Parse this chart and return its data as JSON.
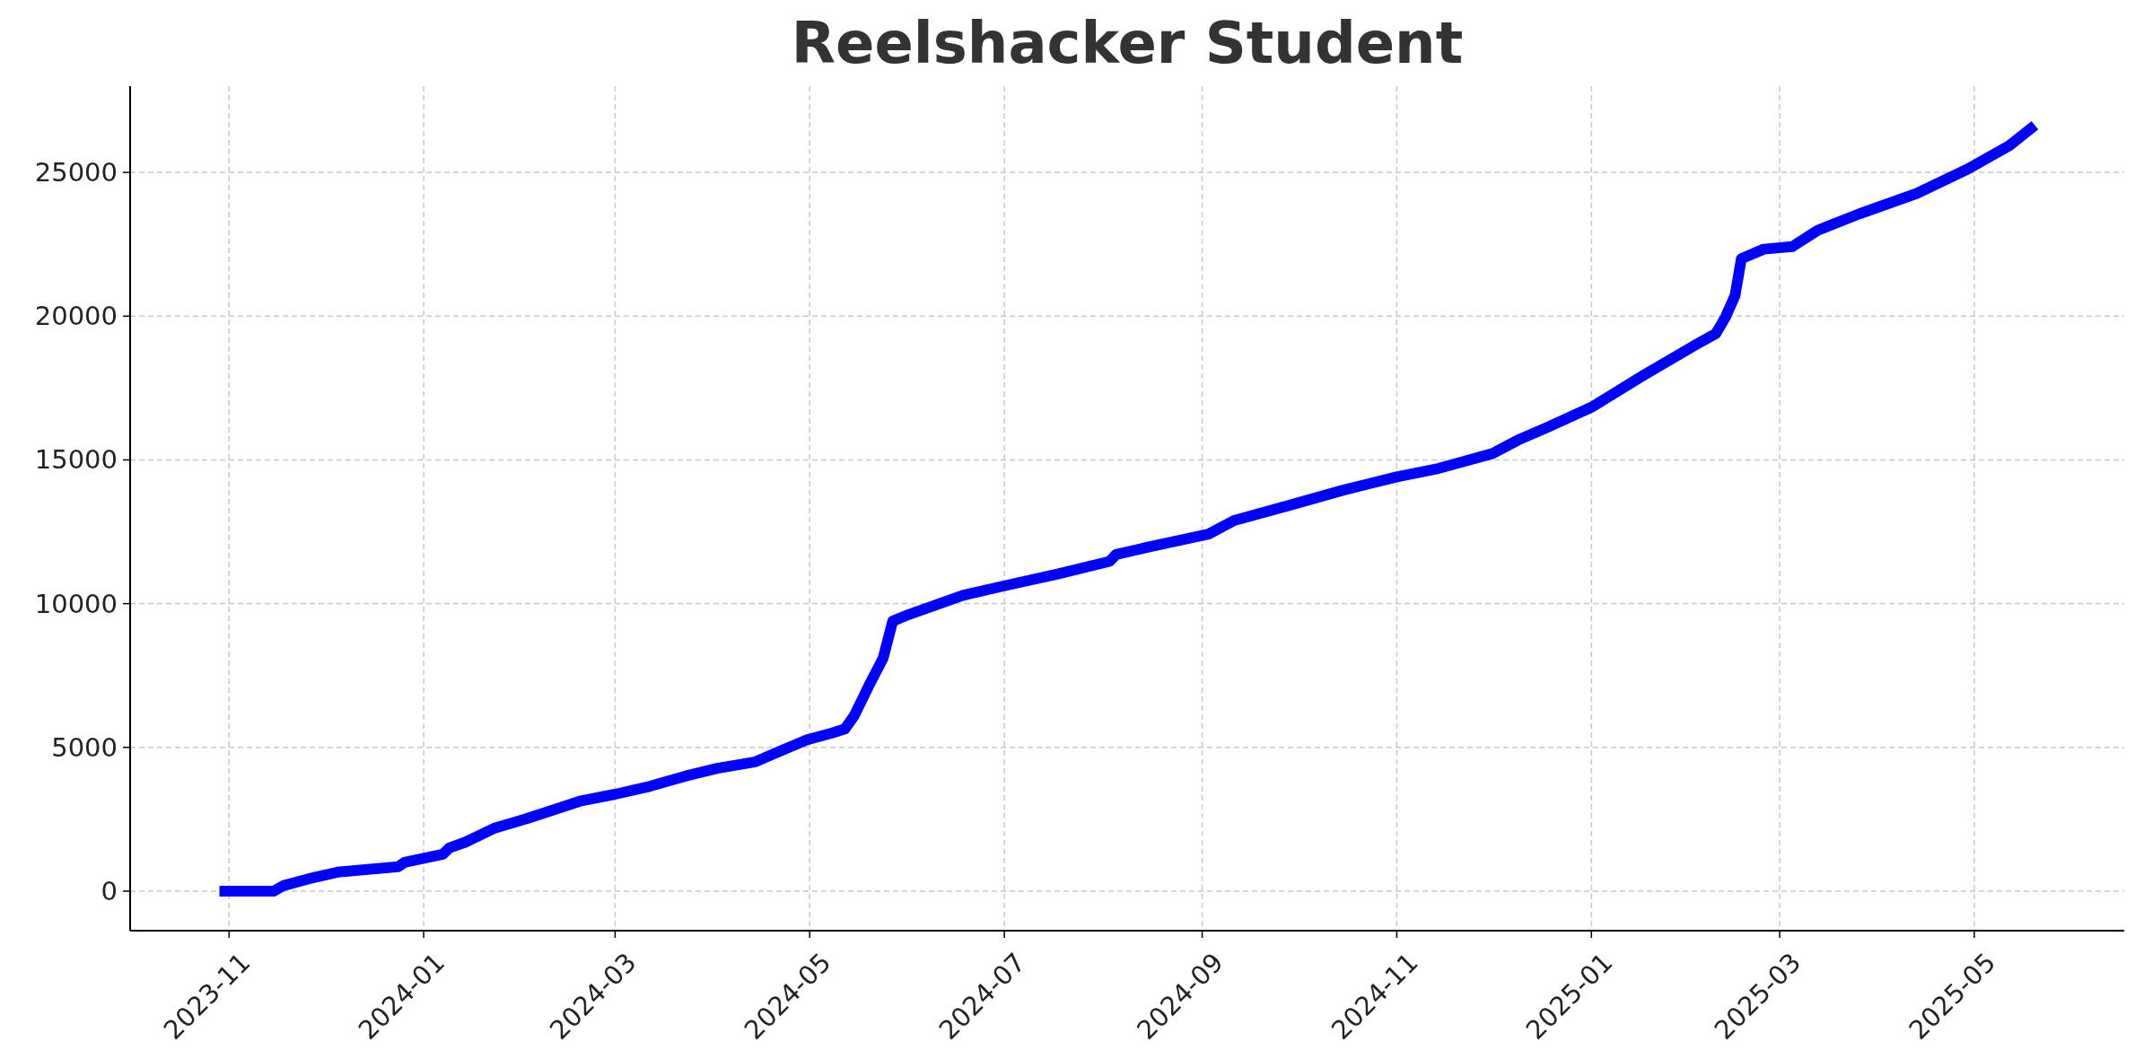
{
  "chart_data": {
    "type": "line",
    "title": "Reelshacker Student",
    "x": [
      "2023-10-29",
      "2023-11-15",
      "2023-11-18",
      "2023-11-26",
      "2023-12-05",
      "2023-12-24",
      "2023-12-26",
      "2024-01-07",
      "2024-01-09",
      "2024-01-14",
      "2024-01-23",
      "2024-02-02",
      "2024-02-19",
      "2024-03-01",
      "2024-03-12",
      "2024-03-24",
      "2024-04-02",
      "2024-04-14",
      "2024-04-23",
      "2024-04-30",
      "2024-05-08",
      "2024-05-12",
      "2024-05-15",
      "2024-05-20",
      "2024-05-24",
      "2024-05-27",
      "2024-06-01",
      "2024-06-18",
      "2024-07-01",
      "2024-07-18",
      "2024-08-03",
      "2024-08-05",
      "2024-08-16",
      "2024-09-03",
      "2024-09-11",
      "2024-09-28",
      "2024-10-15",
      "2024-11-01",
      "2024-11-14",
      "2024-12-01",
      "2024-12-09",
      "2024-12-18",
      "2025-01-01",
      "2025-01-17",
      "2025-02-02",
      "2025-02-09",
      "2025-02-12",
      "2025-02-15",
      "2025-02-17",
      "2025-02-24",
      "2025-03-05",
      "2025-03-13",
      "2025-03-26",
      "2025-04-13",
      "2025-04-29",
      "2025-05-12",
      "2025-05-20"
    ],
    "series": [
      {
        "color": "#0000ff",
        "values": [
          0,
          0,
          190,
          430,
          660,
          850,
          1000,
          1280,
          1500,
          1700,
          2180,
          2510,
          3130,
          3370,
          3650,
          4030,
          4270,
          4500,
          4930,
          5260,
          5500,
          5640,
          6110,
          7250,
          8100,
          9390,
          9620,
          10290,
          10620,
          11040,
          11470,
          11710,
          11990,
          12420,
          12890,
          13410,
          13940,
          14410,
          14700,
          15220,
          15690,
          16120,
          16830,
          17920,
          18960,
          19390,
          19960,
          20710,
          22000,
          22330,
          22420,
          22990,
          23560,
          24270,
          25120,
          25930,
          26640
        ]
      }
    ],
    "xlim": [
      "2023-10-01",
      "2025-06-17"
    ],
    "xticks": [
      {
        "value": "2023-11-01",
        "label": "2023-11"
      },
      {
        "value": "2024-01-01",
        "label": "2024-01"
      },
      {
        "value": "2024-03-01",
        "label": "2024-03"
      },
      {
        "value": "2024-05-01",
        "label": "2024-05"
      },
      {
        "value": "2024-07-01",
        "label": "2024-07"
      },
      {
        "value": "2024-09-01",
        "label": "2024-09"
      },
      {
        "value": "2024-11-01",
        "label": "2024-11"
      },
      {
        "value": "2025-01-01",
        "label": "2025-01"
      },
      {
        "value": "2025-03-01",
        "label": "2025-03"
      },
      {
        "value": "2025-05-01",
        "label": "2025-05"
      }
    ],
    "ylim": [
      -1375,
      28000
    ],
    "yticks": [
      0,
      5000,
      10000,
      15000,
      20000,
      25000
    ],
    "grid": true,
    "line_style": "solid",
    "marker": "none"
  }
}
